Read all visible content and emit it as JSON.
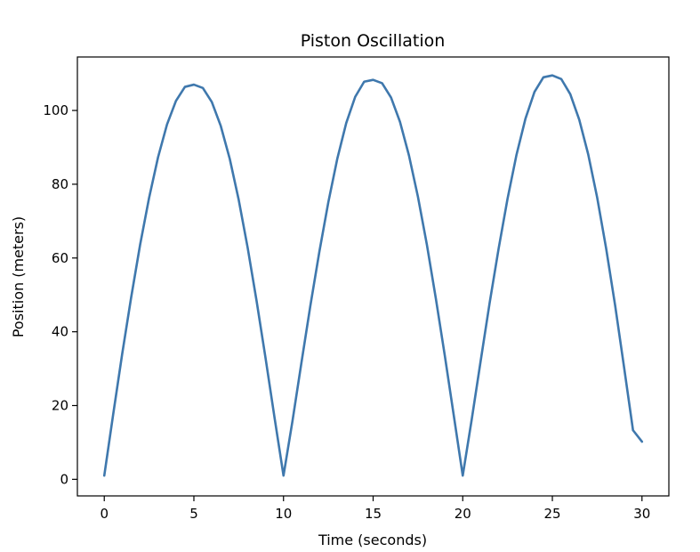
{
  "chart_data": {
    "type": "line",
    "title": "Piston Oscillation",
    "xlabel": "Time (seconds)",
    "ylabel": "Position (meters)",
    "xlim": [
      -1.5,
      31.5
    ],
    "ylim": [
      -4.5,
      114.5
    ],
    "xticks": [
      0,
      5,
      10,
      15,
      20,
      25,
      30
    ],
    "yticks": [
      0,
      20,
      40,
      60,
      80,
      100
    ],
    "grid": false,
    "legend": "none",
    "line_color": "#3f78ad",
    "series": [
      {
        "x": [
          0,
          0.5,
          1,
          1.5,
          2,
          2.5,
          3,
          3.5,
          4,
          4.5,
          5,
          5.5,
          6,
          6.5,
          7,
          7.5,
          8,
          8.5,
          9,
          9.5,
          10,
          10.5,
          11,
          11.5,
          12,
          12.5,
          13,
          13.5,
          14,
          14.5,
          15,
          15.5,
          16,
          16.5,
          17,
          17.5,
          18,
          18.5,
          19,
          19.5,
          20,
          20.5,
          21,
          21.5,
          22,
          22.5,
          23,
          23.5,
          24,
          24.5,
          25,
          25.5,
          26,
          26.5,
          27,
          27.5,
          28,
          28.5,
          29,
          29.5,
          30
        ],
        "y": [
          1.0,
          17.7,
          34.0,
          49.3,
          63.6,
          76.3,
          87.3,
          96.2,
          102.6,
          106.4,
          107.0,
          106.1,
          102.3,
          95.8,
          86.9,
          75.8,
          62.8,
          48.3,
          32.8,
          16.7,
          1.0,
          15.8,
          31.6,
          47.1,
          61.7,
          75.1,
          86.9,
          96.6,
          103.7,
          107.8,
          108.3,
          107.4,
          103.5,
          96.9,
          87.8,
          76.6,
          63.6,
          49.0,
          33.5,
          17.3,
          1.0,
          16.2,
          32.1,
          47.8,
          62.5,
          76.1,
          88.0,
          97.8,
          105.0,
          109.0,
          109.5,
          108.5,
          104.4,
          97.5,
          88.1,
          76.4,
          62.6,
          47.2,
          30.4,
          13.3,
          10.2
        ]
      }
    ]
  }
}
